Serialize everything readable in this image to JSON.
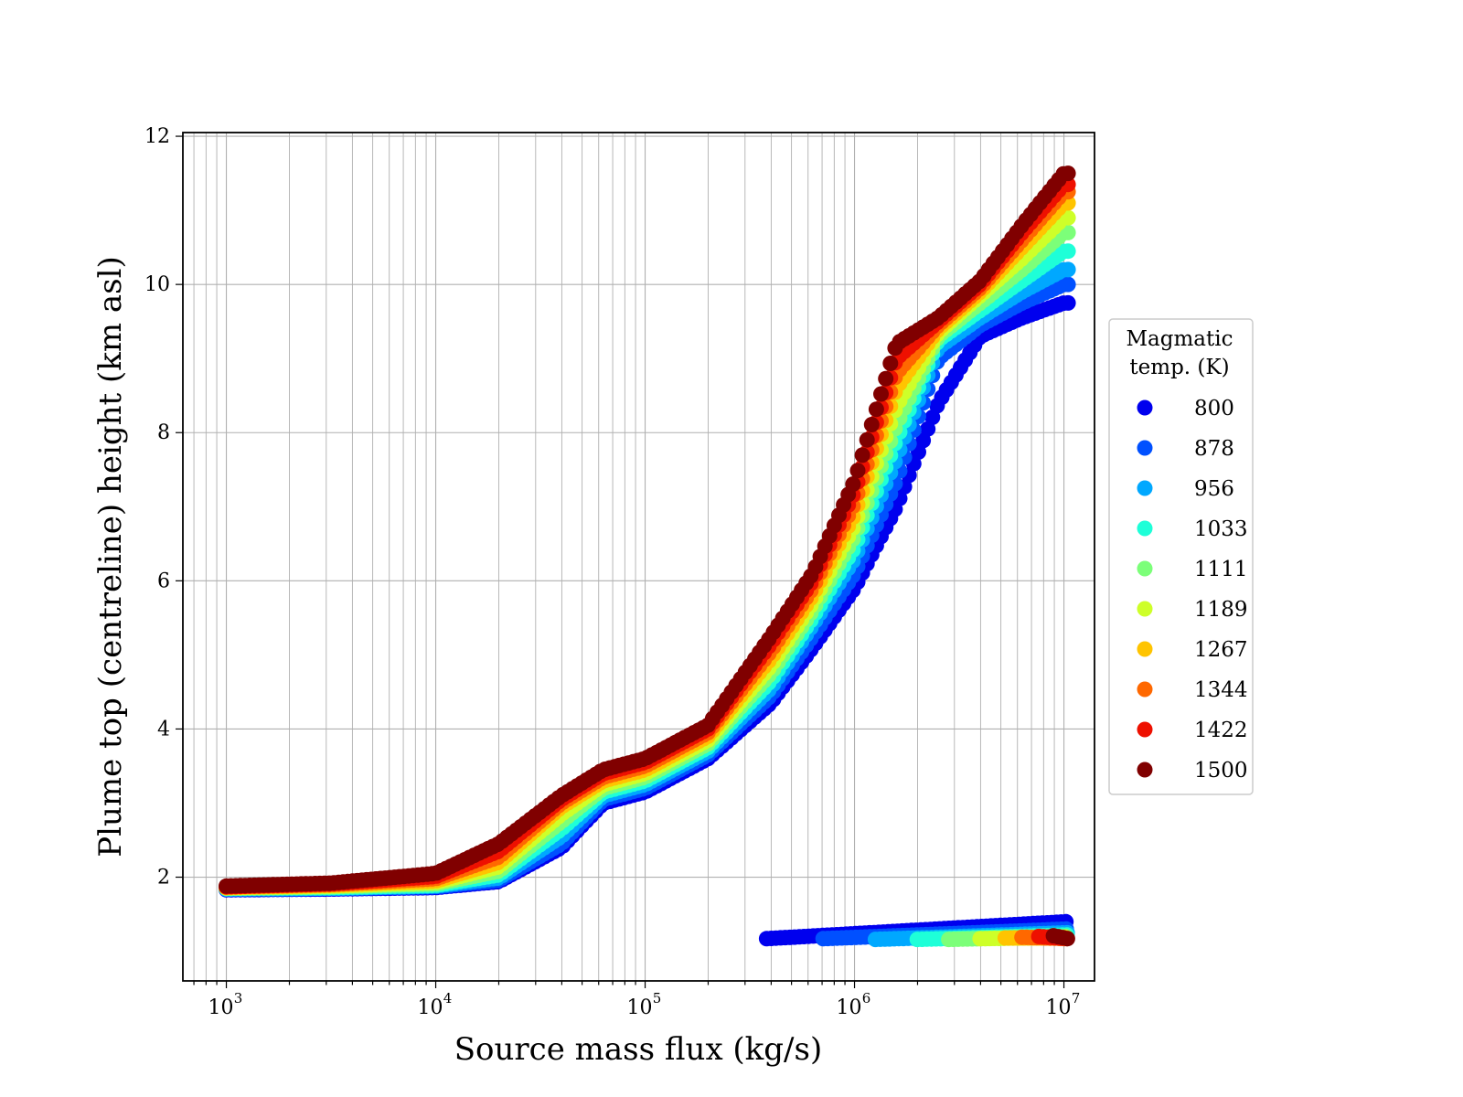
{
  "chart_data": {
    "type": "scatter",
    "xlabel": "Source mass flux (kg/s)",
    "ylabel": "Plume top (centreline) height (km asl)",
    "xscale": "log",
    "xlim": [
      620,
      14000000
    ],
    "ylim": [
      0.6,
      12.05
    ],
    "x_ticks": [
      {
        "base": "10",
        "exp": "3",
        "value": 1000
      },
      {
        "base": "10",
        "exp": "4",
        "value": 10000
      },
      {
        "base": "10",
        "exp": "5",
        "value": 100000
      },
      {
        "base": "10",
        "exp": "6",
        "value": 1000000
      },
      {
        "base": "10",
        "exp": "7",
        "value": 10000000
      }
    ],
    "y_ticks": [
      2,
      4,
      6,
      8,
      10,
      12
    ],
    "grid": true,
    "legend": {
      "title_lines": [
        "Magmatic",
        "temp. (K)"
      ],
      "placement": "outside right"
    },
    "log10_x_range": [
      3,
      7.02
    ],
    "upper_branch_anchors_log10x": [
      3.0,
      3.5,
      4.0,
      4.3,
      4.6,
      4.8,
      5.0,
      5.3,
      5.6,
      5.8,
      6.0,
      6.2,
      6.4,
      6.6,
      6.8,
      7.0
    ],
    "series": [
      {
        "name": "800",
        "color": "#0000ee",
        "upper_y": [
          1.83,
          1.84,
          1.86,
          1.94,
          2.4,
          3.0,
          3.15,
          3.6,
          4.35,
          5.1,
          5.9,
          7.0,
          8.4,
          9.3,
          9.55,
          9.75
        ],
        "lower_x_log10": [
          5.58,
          7.02
        ],
        "lower_y": [
          1.17,
          1.4
        ]
      },
      {
        "name": "878",
        "color": "#0050ff",
        "upper_y": [
          1.84,
          1.85,
          1.87,
          1.96,
          2.45,
          3.05,
          3.2,
          3.65,
          4.45,
          5.25,
          6.1,
          7.35,
          9.0,
          9.45,
          9.75,
          10.0
        ],
        "lower_x_log10": [
          5.85,
          7.02
        ],
        "lower_y": [
          1.17,
          1.3
        ]
      },
      {
        "name": "956",
        "color": "#00a8ff",
        "upper_y": [
          1.84,
          1.85,
          1.88,
          1.99,
          2.55,
          3.1,
          3.25,
          3.7,
          4.55,
          5.4,
          6.3,
          7.65,
          9.15,
          9.55,
          9.9,
          10.2
        ],
        "lower_x_log10": [
          6.1,
          7.02
        ],
        "lower_y": [
          1.16,
          1.25
        ]
      },
      {
        "name": "1033",
        "color": "#1effd8",
        "upper_y": [
          1.85,
          1.86,
          1.89,
          2.03,
          2.65,
          3.15,
          3.3,
          3.75,
          4.65,
          5.5,
          6.45,
          7.9,
          9.25,
          9.65,
          10.05,
          10.45
        ],
        "lower_x_log10": [
          6.3,
          7.02
        ],
        "lower_y": [
          1.16,
          1.22
        ]
      },
      {
        "name": "1111",
        "color": "#7cff79",
        "upper_y": [
          1.85,
          1.87,
          1.91,
          2.08,
          2.75,
          3.2,
          3.35,
          3.8,
          4.75,
          5.6,
          6.6,
          8.1,
          9.3,
          9.75,
          10.2,
          10.7
        ],
        "lower_x_log10": [
          6.45,
          7.02
        ],
        "lower_y": [
          1.16,
          1.2
        ]
      },
      {
        "name": "1189",
        "color": "#ceff29",
        "upper_y": [
          1.86,
          1.88,
          1.93,
          2.14,
          2.85,
          3.25,
          3.4,
          3.85,
          4.85,
          5.7,
          6.75,
          8.35,
          9.35,
          9.85,
          10.35,
          10.9
        ],
        "lower_x_log10": [
          6.6,
          7.02
        ],
        "lower_y": [
          1.17,
          1.19
        ]
      },
      {
        "name": "1267",
        "color": "#ffc400",
        "upper_y": [
          1.86,
          1.89,
          1.95,
          2.2,
          2.95,
          3.3,
          3.45,
          3.9,
          4.95,
          5.8,
          6.9,
          8.6,
          9.4,
          9.9,
          10.5,
          11.1
        ],
        "lower_x_log10": [
          6.72,
          7.02
        ],
        "lower_y": [
          1.18,
          1.18
        ]
      },
      {
        "name": "1344",
        "color": "#ff6800",
        "upper_y": [
          1.87,
          1.9,
          1.98,
          2.27,
          3.0,
          3.35,
          3.5,
          3.95,
          5.05,
          5.9,
          7.05,
          8.8,
          9.45,
          9.95,
          10.6,
          11.25
        ],
        "lower_x_log10": [
          6.8,
          7.02
        ],
        "lower_y": [
          1.19,
          1.17
        ]
      },
      {
        "name": "1422",
        "color": "#ee1000",
        "upper_y": [
          1.87,
          1.91,
          2.01,
          2.35,
          3.05,
          3.4,
          3.55,
          4.0,
          5.15,
          6.0,
          7.2,
          9.0,
          9.5,
          10.0,
          10.7,
          11.35
        ],
        "lower_x_log10": [
          6.88,
          7.02
        ],
        "lower_y": [
          1.2,
          1.17
        ]
      },
      {
        "name": "1500",
        "color": "#800000",
        "upper_y": [
          1.88,
          1.92,
          2.05,
          2.45,
          3.1,
          3.45,
          3.6,
          4.05,
          5.25,
          6.1,
          7.35,
          9.2,
          9.55,
          10.05,
          10.8,
          11.5
        ],
        "lower_x_log10": [
          6.95,
          7.02
        ],
        "lower_y": [
          1.21,
          1.17
        ]
      }
    ]
  }
}
